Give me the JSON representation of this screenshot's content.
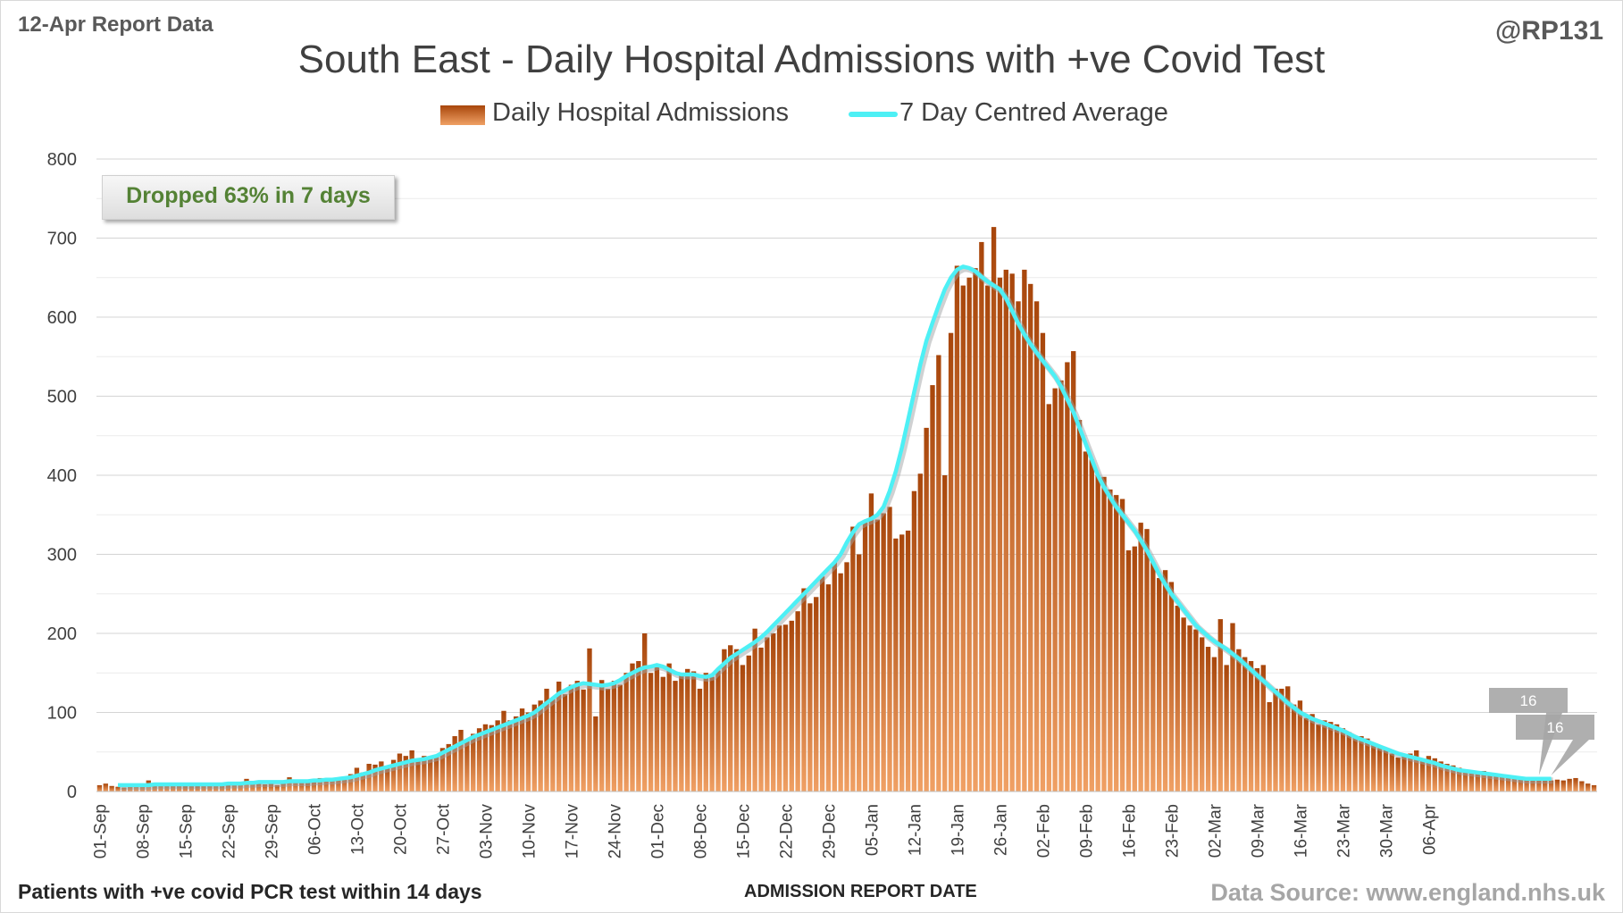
{
  "header": {
    "report_label": "12-Apr Report Data",
    "handle": "@RP131"
  },
  "footer": {
    "note": "Patients with +ve covid PCR test within 14 days",
    "source": "Data Source: www.england.nhs.uk"
  },
  "annotation": "Dropped 63% in 7 days",
  "colors": {
    "bar_dark": "#a8460b",
    "bar_light": "#f0a064",
    "line": "#4df0f5",
    "annotation_text": "#548235"
  },
  "chart_data": {
    "type": "bar",
    "title": "South East - Daily Hospital Admissions with +ve Covid Test",
    "xlabel": "ADMISSION REPORT DATE",
    "ylabel": "",
    "ylim": [
      0,
      800
    ],
    "yticks": [
      0,
      100,
      200,
      300,
      400,
      500,
      600,
      700,
      800
    ],
    "grid": true,
    "legend_position": "top",
    "x_start": "01-Sep",
    "x_end": "11-Apr",
    "xtick_labels": [
      "01-Sep",
      "08-Sep",
      "15-Sep",
      "22-Sep",
      "29-Sep",
      "06-Oct",
      "13-Oct",
      "20-Oct",
      "27-Oct",
      "03-Nov",
      "10-Nov",
      "17-Nov",
      "24-Nov",
      "01-Dec",
      "08-Dec",
      "15-Dec",
      "22-Dec",
      "29-Dec",
      "05-Jan",
      "12-Jan",
      "19-Jan",
      "26-Jan",
      "02-Feb",
      "09-Feb",
      "16-Feb",
      "23-Feb",
      "02-Mar",
      "09-Mar",
      "16-Mar",
      "23-Mar",
      "30-Mar",
      "06-Apr"
    ],
    "series": [
      {
        "name": "Daily Hospital Admissions",
        "type": "bar",
        "values": [
          8,
          10,
          7,
          6,
          5,
          7,
          9,
          8,
          14,
          8,
          9,
          9,
          8,
          8,
          7,
          8,
          7,
          8,
          8,
          9,
          8,
          9,
          10,
          11,
          16,
          12,
          11,
          9,
          10,
          8,
          11,
          18,
          14,
          12,
          11,
          13,
          17,
          16,
          17,
          17,
          18,
          22,
          30,
          24,
          35,
          34,
          38,
          30,
          40,
          48,
          45,
          52,
          38,
          45,
          43,
          45,
          55,
          60,
          70,
          78,
          65,
          73,
          80,
          85,
          84,
          90,
          102,
          90,
          95,
          105,
          100,
          110,
          115,
          130,
          118,
          139,
          123,
          135,
          140,
          129,
          181,
          95,
          141,
          130,
          140,
          135,
          150,
          162,
          165,
          200,
          150,
          160,
          145,
          162,
          140,
          150,
          155,
          152,
          130,
          150,
          145,
          153,
          180,
          185,
          180,
          160,
          172,
          206,
          182,
          195,
          200,
          210,
          211,
          216,
          228,
          257,
          238,
          246,
          272,
          262,
          290,
          276,
          290,
          335,
          300,
          340,
          377,
          344,
          352,
          360,
          320,
          325,
          330,
          380,
          402,
          460,
          514,
          552,
          400,
          580,
          665,
          640,
          650,
          662,
          695,
          640,
          714,
          650,
          660,
          655,
          620,
          660,
          642,
          620,
          580,
          490,
          510,
          520,
          543,
          557,
          470,
          430,
          420,
          400,
          398,
          382,
          375,
          370,
          305,
          310,
          340,
          332,
          290,
          270,
          280,
          265,
          235,
          220,
          210,
          205,
          195,
          183,
          170,
          218,
          160,
          213,
          180,
          170,
          165,
          156,
          160,
          113,
          130,
          130,
          133,
          110,
          115,
          93,
          98,
          85,
          90,
          88,
          85,
          80,
          75,
          70,
          70,
          67,
          60,
          55,
          53,
          48,
          43,
          45,
          48,
          52,
          40,
          45,
          42,
          38,
          35,
          33,
          30,
          28,
          27,
          25,
          26,
          23,
          22,
          22,
          20,
          18,
          17,
          16,
          15,
          15,
          14,
          14,
          15,
          14,
          16,
          17,
          13,
          10,
          8
        ]
      },
      {
        "name": "7 Day Centred Average",
        "type": "line",
        "values": [
          null,
          null,
          null,
          8,
          8,
          8,
          8,
          8,
          8,
          9,
          9,
          9,
          9,
          9,
          9,
          9,
          9,
          9,
          9,
          9,
          9,
          10,
          10,
          10,
          11,
          11,
          12,
          12,
          12,
          12,
          12,
          13,
          13,
          13,
          13,
          14,
          14,
          15,
          15,
          16,
          17,
          18,
          20,
          22,
          24,
          27,
          29,
          31,
          33,
          35,
          37,
          39,
          40,
          41,
          43,
          45,
          49,
          53,
          57,
          61,
          65,
          69,
          72,
          75,
          78,
          81,
          84,
          87,
          90,
          93,
          96,
          100,
          106,
          112,
          118,
          124,
          128,
          132,
          135,
          137,
          136,
          135,
          134,
          135,
          137,
          141,
          146,
          150,
          154,
          157,
          158,
          160,
          158,
          154,
          150,
          148,
          148,
          148,
          146,
          145,
          147,
          155,
          162,
          169,
          174,
          179,
          184,
          189,
          195,
          202,
          210,
          218,
          226,
          234,
          242,
          250,
          258,
          266,
          274,
          282,
          290,
          300,
          315,
          328,
          338,
          342,
          345,
          350,
          360,
          380,
          405,
          435,
          470,
          505,
          540,
          570,
          593,
          615,
          635,
          650,
          660,
          664,
          662,
          658,
          651,
          645,
          640,
          635,
          624,
          608,
          592,
          578,
          566,
          555,
          545,
          535,
          525,
          512,
          496,
          480,
          460,
          440,
          420,
          400,
          385,
          372,
          360,
          350,
          340,
          330,
          318,
          305,
          290,
          275,
          262,
          250,
          240,
          230,
          220,
          210,
          203,
          196,
          190,
          185,
          180,
          174,
          168,
          161,
          154,
          147,
          140,
          133,
          126,
          119,
          112,
          106,
          100,
          96,
          92,
          89,
          86,
          83,
          80,
          77,
          73,
          69,
          66,
          63,
          60,
          57,
          54,
          51,
          48,
          46,
          44,
          42,
          40,
          38,
          36,
          33,
          31,
          29,
          27,
          26,
          25,
          24,
          23,
          22,
          21,
          20,
          19,
          18,
          17,
          16,
          16,
          16,
          16,
          16,
          null,
          null,
          null
        ]
      }
    ],
    "data_labels": [
      "16",
      "16"
    ]
  }
}
